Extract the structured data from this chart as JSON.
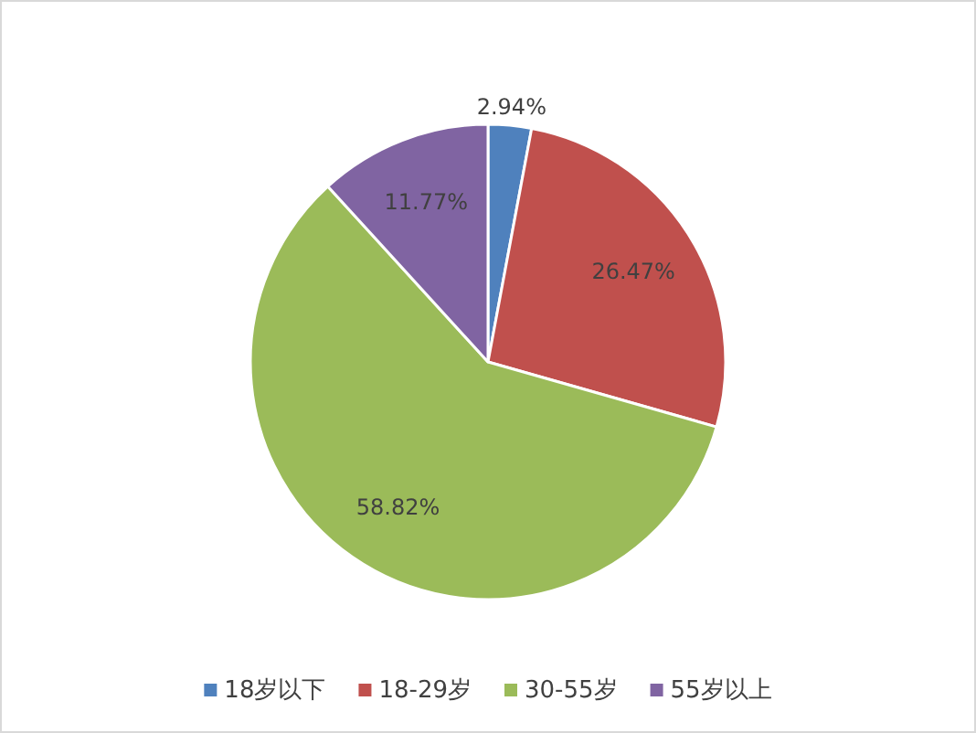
{
  "chart_data": {
    "type": "pie",
    "categories": [
      "18岁以下",
      "18-29岁",
      "30-55岁",
      "55岁以上"
    ],
    "values": [
      2.94,
      26.47,
      58.82,
      11.77
    ],
    "colors": [
      "#4f81bd",
      "#c0504d",
      "#9bbb59",
      "#8064a2"
    ],
    "value_labels": [
      "2.94%",
      "26.47%",
      "58.82%",
      "11.77%"
    ],
    "legend": "bottom"
  }
}
